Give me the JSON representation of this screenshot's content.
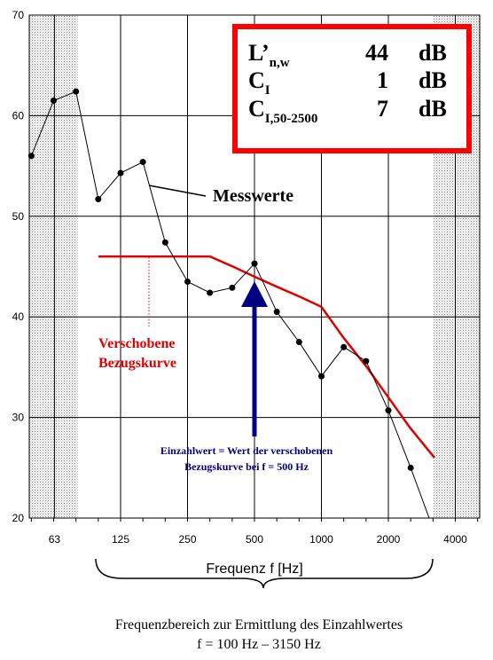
{
  "chart_data": {
    "type": "line",
    "xlabel": "Frequenz f [Hz]",
    "ylim": [
      20,
      70
    ],
    "y_ticks": [
      "20",
      "30",
      "40",
      "50",
      "60",
      "70"
    ],
    "x_scale": "log (third-octave bands)",
    "x_ticks": [
      "63",
      "125",
      "250",
      "500",
      "1000",
      "2000",
      "4000"
    ],
    "grid": true,
    "series": [
      {
        "name": "Messwerte",
        "x": [
          50,
          63,
          80,
          100,
          125,
          160,
          200,
          250,
          315,
          400,
          500,
          630,
          800,
          1000,
          1250,
          1600,
          2000,
          2500,
          3150
        ],
        "y": [
          56.0,
          61.5,
          62.4,
          51.7,
          54.3,
          55.4,
          47.4,
          43.5,
          42.4,
          42.9,
          45.3,
          40.5,
          37.5,
          34.1,
          37.0,
          35.6,
          30.7,
          25.0,
          20.0
        ],
        "color": "#000000"
      },
      {
        "name": "Verschobene Bezugskurve",
        "x": [
          100,
          125,
          160,
          200,
          250,
          315,
          400,
          500,
          630,
          800,
          1000,
          1250,
          1600,
          2000,
          2500,
          3150
        ],
        "y": [
          46.0,
          46.0,
          46.0,
          46.0,
          46.0,
          46.0,
          45.0,
          44.0,
          43.0,
          42.0,
          41.0,
          38.0,
          35.0,
          32.0,
          29.0,
          26.0
        ],
        "color": "#e00000"
      }
    ],
    "annotations": {
      "messwerte_label": "Messwerte",
      "bezugskurve_label_line1": "Verschobene",
      "bezugskurve_label_line2": "Bezugskurve",
      "einzahlwert_line1": "Einzahlwert = Wert der verschobenen",
      "einzahlwert_line2": "Bezugskurve bei f = 500 Hz",
      "range_line1": "Frequenzbereich zur Ermittlung des Einzahlwertes",
      "range_line2": "f = 100 Hz – 3150 Hz"
    },
    "results_box": {
      "rows": [
        {
          "label_main": "L’",
          "label_sub": "n,w",
          "value": "44",
          "unit": "dB"
        },
        {
          "label_main": "C",
          "label_sub": "I",
          "value": "1",
          "unit": "dB"
        },
        {
          "label_main": "C",
          "label_sub": "I,50-2500",
          "value": "7",
          "unit": "dB"
        }
      ]
    },
    "colors": {
      "measured": "#000000",
      "reference": "#e00000",
      "arrow": "#000080",
      "box_border": "#ff0000",
      "shading": "#c8c8c8"
    }
  }
}
